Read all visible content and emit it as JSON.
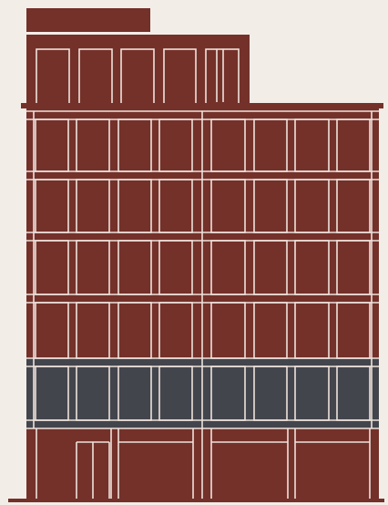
{
  "illustration": {
    "subject": "building-facade",
    "colors": {
      "background": "#f3ede7",
      "brick": "#73312a",
      "glass_band": "#43454d",
      "trim": "#efe3dc",
      "outline": "#5a241f"
    },
    "upper_floor_count": 4,
    "bays_per_side": 4,
    "penthouse_window_count": 5
  }
}
